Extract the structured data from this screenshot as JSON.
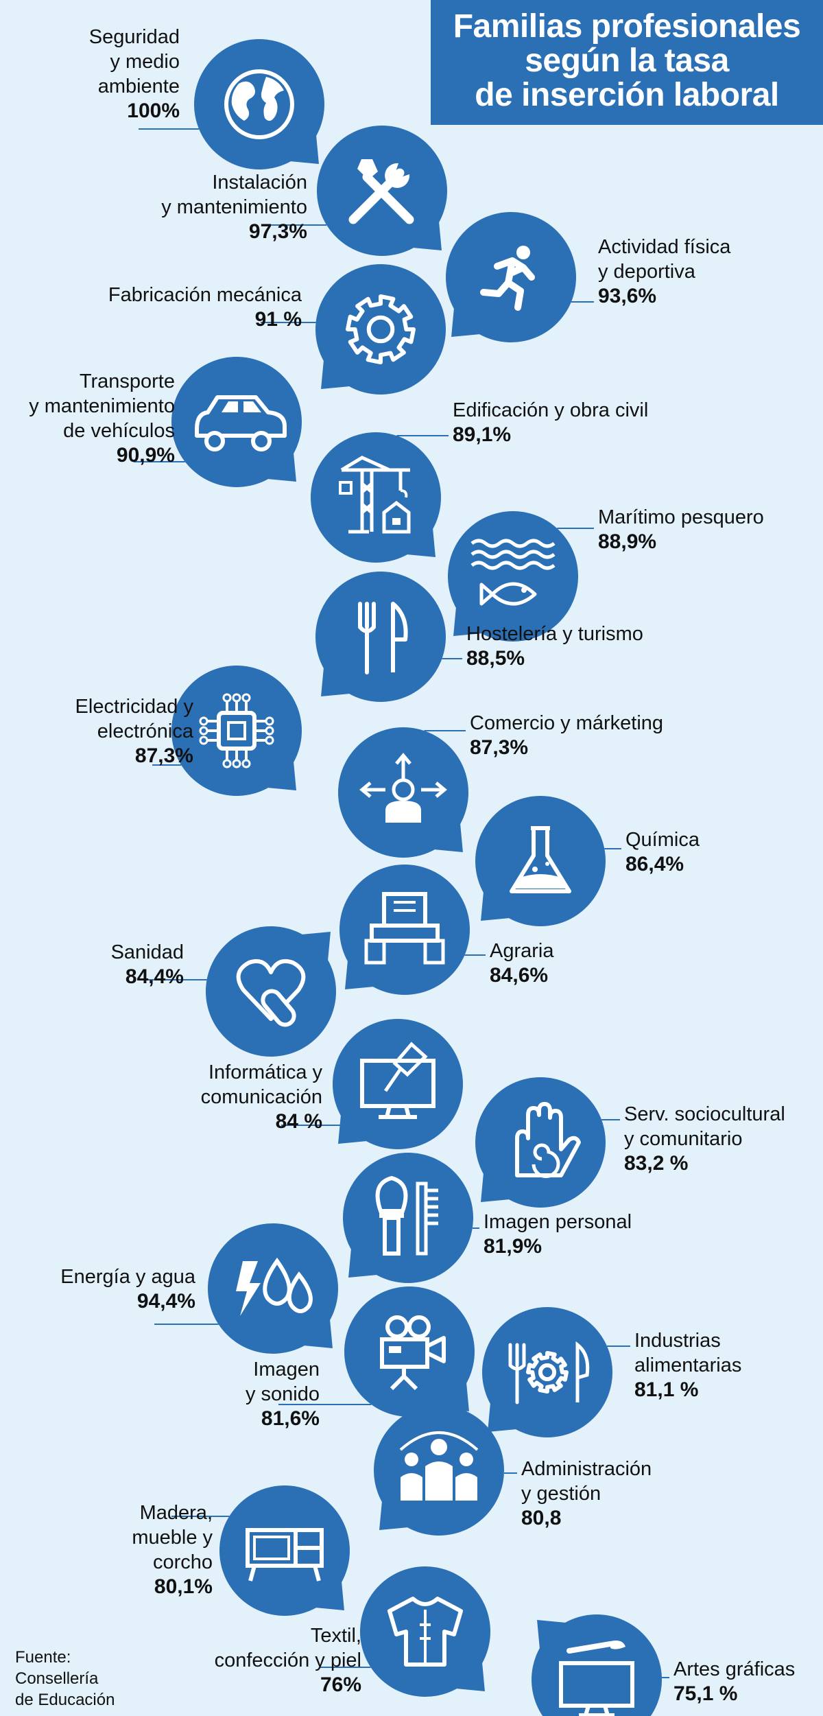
{
  "title_lines": [
    "Familias profesionales",
    "según la tasa",
    "de inserción laboral"
  ],
  "source_lines": [
    "Fuente:",
    "Consellería",
    "de Educación"
  ],
  "colors": {
    "bubble": "#2b6fb5",
    "title_bg": "#2b6fb5",
    "background": "#e3f1fa",
    "text": "#111111"
  },
  "chart_data": {
    "type": "table",
    "categories": [
      "Seguridad y medio ambiente",
      "Instalación y mantenimiento",
      "Actividad física y deportiva",
      "Fabricación mecánica",
      "Transporte y mantenimiento de vehículos",
      "Edificación y obra civil",
      "Marítimo pesquero",
      "Hostelería y turismo",
      "Electricidad y electrónica",
      "Comercio y márketing",
      "Química",
      "Agraria",
      "Sanidad",
      "Informática y comunicación",
      "Serv. sociocultural y comunitario",
      "Imagen personal",
      "Energía y agua",
      "Imagen y sonido",
      "Industrias alimentarias",
      "Administración y gestión",
      "Madera, mueble y corcho",
      "Textil, confección y piel",
      "Artes gráficas"
    ],
    "values": [
      100,
      97.3,
      93.6,
      91,
      90.9,
      89.1,
      88.9,
      88.5,
      87.3,
      87.3,
      86.4,
      84.6,
      84.4,
      84,
      83.2,
      81.9,
      94.4,
      81.6,
      81.1,
      80.8,
      80.1,
      76,
      75.1
    ],
    "unit": "%"
  },
  "items": [
    {
      "name_lines": [
        "Seguridad",
        "y medio",
        "ambiente"
      ],
      "value_text": "100%",
      "icon": "globe-icon"
    },
    {
      "name_lines": [
        "Instalación",
        "y mantenimiento"
      ],
      "value_text": "97,3%",
      "icon": "tools-icon"
    },
    {
      "name_lines": [
        "Actividad física",
        "y deportiva"
      ],
      "value_text": "93,6%",
      "icon": "runner-icon"
    },
    {
      "name_lines": [
        "Fabricación mecánica"
      ],
      "value_text": "91 %",
      "icon": "gear-icon"
    },
    {
      "name_lines": [
        "Transporte",
        "y mantenimiento",
        "de vehículos"
      ],
      "value_text": "90,9%",
      "icon": "car-icon"
    },
    {
      "name_lines": [
        "Edificación y obra civil"
      ],
      "value_text": "89,1%",
      "icon": "crane-icon"
    },
    {
      "name_lines": [
        "Marítimo pesquero"
      ],
      "value_text": "88,9%",
      "icon": "fish-waves-icon"
    },
    {
      "name_lines": [
        "Hostelería y turismo"
      ],
      "value_text": "88,5%",
      "icon": "cutlery-icon"
    },
    {
      "name_lines": [
        "Electricidad y",
        "electrónica"
      ],
      "value_text": "87,3%",
      "icon": "chip-icon"
    },
    {
      "name_lines": [
        "Comercio y márketing"
      ],
      "value_text": "87,3%",
      "icon": "businessman-icon"
    },
    {
      "name_lines": [
        "Química"
      ],
      "value_text": "86,4%",
      "icon": "flask-icon"
    },
    {
      "name_lines": [
        "Agraria"
      ],
      "value_text": "84,6%",
      "icon": "tractor-icon"
    },
    {
      "name_lines": [
        "Sanidad"
      ],
      "value_text": "84,4%",
      "icon": "heart-pill-icon"
    },
    {
      "name_lines": [
        "Informática y",
        "comunicación"
      ],
      "value_text": "84 %",
      "icon": "computer-icon"
    },
    {
      "name_lines": [
        "Serv. sociocultural",
        "y comunitario"
      ],
      "value_text": "83,2 %",
      "icon": "hand-icon"
    },
    {
      "name_lines": [
        "Imagen personal"
      ],
      "value_text": "81,9%",
      "icon": "brush-comb-icon"
    },
    {
      "name_lines": [
        "Energía y agua"
      ],
      "value_text": "94,4%",
      "icon": "bolt-drops-icon"
    },
    {
      "name_lines": [
        "Imagen",
        "y sonido"
      ],
      "value_text": "81,6%",
      "icon": "camera-icon"
    },
    {
      "name_lines": [
        "Industrias",
        "alimentarias"
      ],
      "value_text": "81,1 %",
      "icon": "food-industry-icon"
    },
    {
      "name_lines": [
        "Administración",
        "y gestión"
      ],
      "value_text": "80,8",
      "icon": "team-icon"
    },
    {
      "name_lines": [
        "Madera,",
        "mueble y",
        "corcho"
      ],
      "value_text": "80,1%",
      "icon": "furniture-icon"
    },
    {
      "name_lines": [
        "Textil,",
        "confección y piel"
      ],
      "value_text": "76%",
      "icon": "shirt-icon"
    },
    {
      "name_lines": [
        "Artes gráficas"
      ],
      "value_text": "75,1 %",
      "icon": "monitor-brush-icon"
    }
  ]
}
